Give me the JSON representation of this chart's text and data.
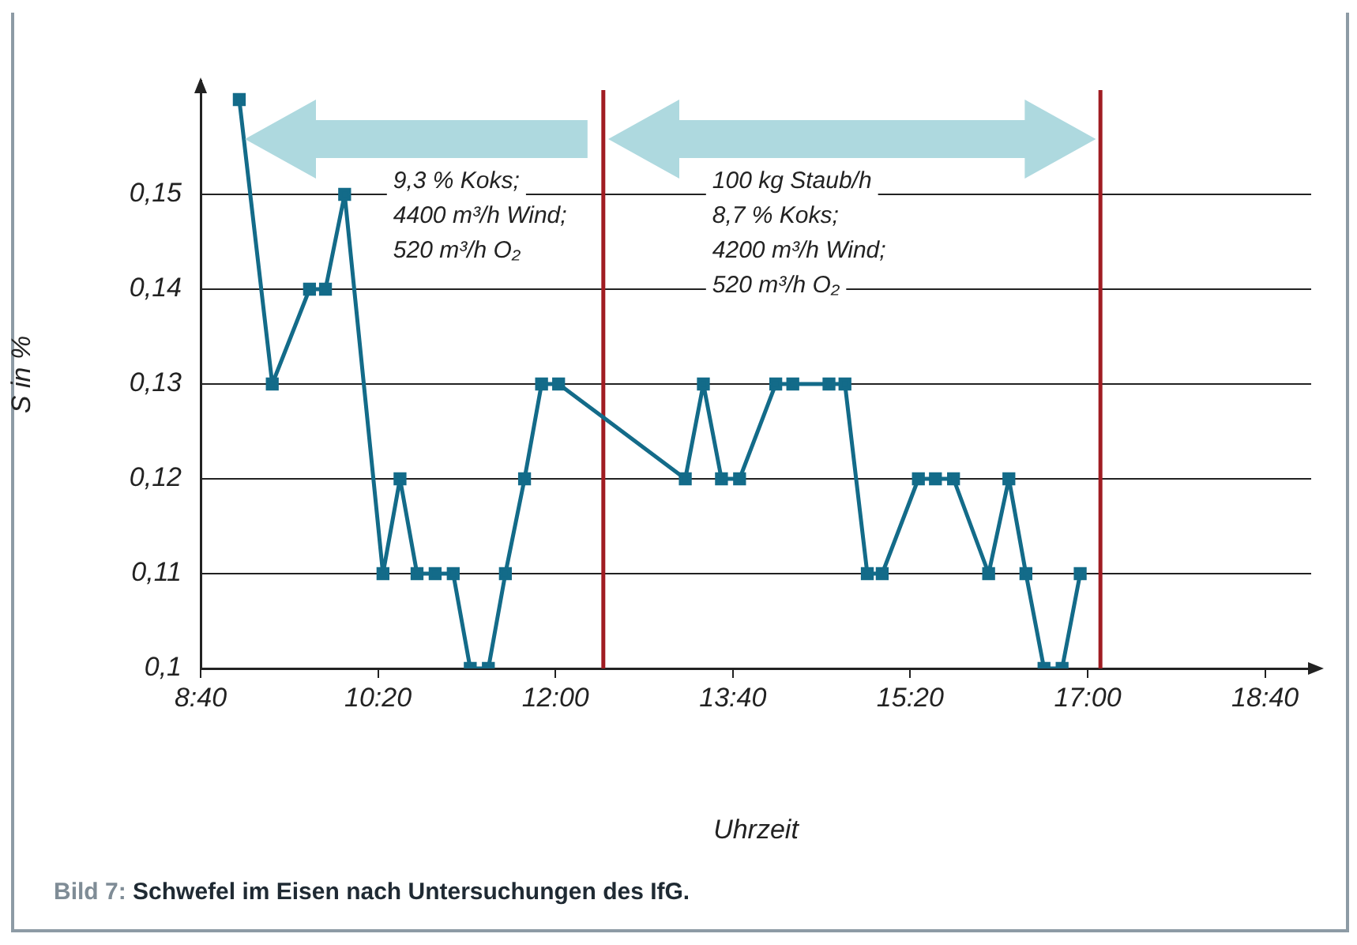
{
  "chart_data": {
    "type": "line",
    "xlabel": "Uhrzeit",
    "ylabel": "S in %",
    "x": [
      9.03,
      9.34,
      9.69,
      9.84,
      10.02,
      10.38,
      10.54,
      10.7,
      10.87,
      11.04,
      11.2,
      11.37,
      11.53,
      11.71,
      11.87,
      12.03,
      13.22,
      13.39,
      13.56,
      13.73,
      14.07,
      14.23,
      14.57,
      14.72,
      14.93,
      15.07,
      15.41,
      15.57,
      15.74,
      16.07,
      16.26,
      16.42,
      16.59,
      16.76,
      16.93
    ],
    "series": [
      {
        "color": "#136b89",
        "values": [
          0.16,
          0.13,
          0.14,
          0.14,
          0.15,
          0.11,
          0.12,
          0.11,
          0.11,
          0.11,
          0.1,
          0.1,
          0.11,
          0.12,
          0.13,
          0.13,
          0.12,
          0.13,
          0.12,
          0.12,
          0.13,
          0.13,
          0.13,
          0.13,
          0.11,
          0.11,
          0.12,
          0.12,
          0.12,
          0.11,
          0.12,
          0.11,
          0.1,
          0.1,
          0.11
        ]
      }
    ],
    "xlim": [
      8.667,
      19.1
    ],
    "xticks": [
      {
        "value": 8.667,
        "label": "8:40"
      },
      {
        "value": 10.333,
        "label": "10:20"
      },
      {
        "value": 12,
        "label": "12:00"
      },
      {
        "value": 13.667,
        "label": "13:40"
      },
      {
        "value": 15.333,
        "label": "15:20"
      },
      {
        "value": 17,
        "label": "17:00"
      },
      {
        "value": 18.667,
        "label": "18:40"
      }
    ],
    "ylim": [
      0.1,
      0.162
    ],
    "yticks": [
      {
        "value": 0.1,
        "label": "0,1"
      },
      {
        "value": 0.11,
        "label": "0,11"
      },
      {
        "value": 0.12,
        "label": "0,12"
      },
      {
        "value": 0.13,
        "label": "0,13"
      },
      {
        "value": 0.14,
        "label": "0,14"
      },
      {
        "value": 0.15,
        "label": "0,15"
      }
    ],
    "ref_lines": [
      {
        "axis": "x",
        "value": 12.45,
        "color": "#a01c22"
      },
      {
        "axis": "x",
        "value": 17.12,
        "color": "#a01c22"
      }
    ],
    "annotations": [
      "9,3 % Koks;\n4400 m³/h Wind;\n520 m³/h O₂",
      "100 kg Staub/h\n8,7 % Koks;\n4200 m³/h Wind;\n520 m³/h O₂",
      "Bild 7: Schwefel im Eisen nach Untersuchungen des IfG."
    ],
    "grid": "y",
    "legend": false,
    "marker": "square",
    "line_style": "solid"
  }
}
